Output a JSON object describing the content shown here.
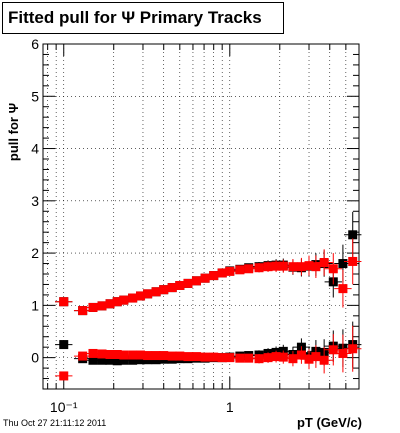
{
  "title": "Fitted pull for  Ψ  Primary Tracks",
  "timestamp": "Thu Oct 27 21:11:12 2011",
  "chart_data": {
    "type": "scatter",
    "title": "Fitted pull for  Ψ  Primary Tracks",
    "xlabel": "pT (GeV/c)",
    "ylabel": "pull for Ψ",
    "x_scale": "log",
    "xlim": [
      0.075,
      6.0
    ],
    "ylim": [
      -0.6,
      6
    ],
    "grid": true,
    "x_ticks": [
      {
        "value": 0.1,
        "label": "10⁻¹"
      },
      {
        "value": 1,
        "label": "1"
      }
    ],
    "y_ticks": [
      0,
      1,
      2,
      3,
      4,
      5,
      6
    ],
    "colors": {
      "black": "#000000",
      "red": "#ff0000"
    },
    "series": [
      {
        "color": "black",
        "points": [
          [
            0.1,
            1.07
          ],
          [
            0.13,
            0.9
          ],
          [
            0.15,
            0.96
          ],
          [
            0.17,
            0.99
          ],
          [
            0.19,
            1.03
          ],
          [
            0.21,
            1.07
          ],
          [
            0.23,
            1.1
          ],
          [
            0.26,
            1.14
          ],
          [
            0.29,
            1.18
          ],
          [
            0.32,
            1.22
          ],
          [
            0.36,
            1.26
          ],
          [
            0.4,
            1.3
          ],
          [
            0.45,
            1.34
          ],
          [
            0.5,
            1.38
          ],
          [
            0.56,
            1.42
          ],
          [
            0.63,
            1.47
          ],
          [
            0.71,
            1.52
          ],
          [
            0.8,
            1.57
          ],
          [
            0.9,
            1.62
          ],
          [
            1.0,
            1.66
          ],
          [
            1.15,
            1.69
          ],
          [
            1.3,
            1.72
          ],
          [
            1.5,
            1.74
          ],
          [
            1.7,
            1.76
          ],
          [
            1.9,
            1.77
          ],
          [
            2.1,
            1.77
          ],
          [
            2.4,
            1.73
          ],
          [
            2.7,
            1.72
          ],
          [
            3.0,
            1.75
          ],
          [
            3.3,
            1.78
          ],
          [
            3.7,
            1.8
          ],
          [
            4.2,
            1.45
          ],
          [
            4.8,
            1.8
          ],
          [
            5.5,
            2.35
          ],
          [
            0.1,
            0.25
          ],
          [
            0.13,
            -0.02
          ],
          [
            0.15,
            -0.05
          ],
          [
            0.17,
            -0.05
          ],
          [
            0.19,
            -0.05
          ],
          [
            0.21,
            -0.06
          ],
          [
            0.23,
            -0.05
          ],
          [
            0.26,
            -0.05
          ],
          [
            0.29,
            -0.04
          ],
          [
            0.32,
            -0.04
          ],
          [
            0.36,
            -0.04
          ],
          [
            0.4,
            -0.03
          ],
          [
            0.45,
            -0.03
          ],
          [
            0.5,
            -0.02
          ],
          [
            0.56,
            -0.02
          ],
          [
            0.63,
            -0.01
          ],
          [
            0.71,
            -0.01
          ],
          [
            0.8,
            0.0
          ],
          [
            0.9,
            0.0
          ],
          [
            1.0,
            0.01
          ],
          [
            1.15,
            0.03
          ],
          [
            1.3,
            0.04
          ],
          [
            1.5,
            0.05
          ],
          [
            1.7,
            0.08
          ],
          [
            1.9,
            0.1
          ],
          [
            2.1,
            0.12
          ],
          [
            2.4,
            0.06
          ],
          [
            2.7,
            0.2
          ],
          [
            3.0,
            0.02
          ],
          [
            3.3,
            0.12
          ],
          [
            3.7,
            0.1
          ],
          [
            4.2,
            0.22
          ],
          [
            4.8,
            0.18
          ],
          [
            5.5,
            0.25
          ]
        ]
      },
      {
        "color": "red",
        "points": [
          [
            0.1,
            1.07
          ],
          [
            0.13,
            0.9
          ],
          [
            0.15,
            0.96
          ],
          [
            0.17,
            0.99
          ],
          [
            0.19,
            1.03
          ],
          [
            0.21,
            1.07
          ],
          [
            0.23,
            1.1
          ],
          [
            0.26,
            1.14
          ],
          [
            0.29,
            1.18
          ],
          [
            0.32,
            1.22
          ],
          [
            0.36,
            1.26
          ],
          [
            0.4,
            1.3
          ],
          [
            0.45,
            1.34
          ],
          [
            0.5,
            1.38
          ],
          [
            0.56,
            1.42
          ],
          [
            0.63,
            1.47
          ],
          [
            0.71,
            1.52
          ],
          [
            0.8,
            1.57
          ],
          [
            0.9,
            1.62
          ],
          [
            1.0,
            1.65
          ],
          [
            1.15,
            1.68
          ],
          [
            1.3,
            1.7
          ],
          [
            1.5,
            1.72
          ],
          [
            1.7,
            1.74
          ],
          [
            1.9,
            1.75
          ],
          [
            2.1,
            1.75
          ],
          [
            2.4,
            1.74
          ],
          [
            2.7,
            1.74
          ],
          [
            3.0,
            1.76
          ],
          [
            3.3,
            1.74
          ],
          [
            3.7,
            1.82
          ],
          [
            4.2,
            1.7
          ],
          [
            4.8,
            1.32
          ],
          [
            5.5,
            1.84
          ],
          [
            0.1,
            -0.35
          ],
          [
            0.13,
            0.03
          ],
          [
            0.15,
            0.08
          ],
          [
            0.17,
            0.07
          ],
          [
            0.19,
            0.06
          ],
          [
            0.21,
            0.06
          ],
          [
            0.23,
            0.05
          ],
          [
            0.26,
            0.05
          ],
          [
            0.29,
            0.05
          ],
          [
            0.32,
            0.04
          ],
          [
            0.36,
            0.04
          ],
          [
            0.4,
            0.04
          ],
          [
            0.45,
            0.03
          ],
          [
            0.5,
            0.03
          ],
          [
            0.56,
            0.02
          ],
          [
            0.63,
            0.02
          ],
          [
            0.71,
            0.01
          ],
          [
            0.8,
            0.01
          ],
          [
            0.9,
            0.0
          ],
          [
            1.0,
            0.0
          ],
          [
            1.15,
            -0.01
          ],
          [
            1.3,
            -0.01
          ],
          [
            1.5,
            -0.02
          ],
          [
            1.7,
            0.0
          ],
          [
            1.9,
            0.02
          ],
          [
            2.1,
            0.01
          ],
          [
            2.4,
            -0.02
          ],
          [
            2.7,
            0.05
          ],
          [
            3.0,
            -0.03
          ],
          [
            3.3,
            0.02
          ],
          [
            3.7,
            -0.05
          ],
          [
            4.2,
            0.15
          ],
          [
            4.8,
            0.08
          ],
          [
            5.5,
            0.17
          ]
        ]
      }
    ]
  }
}
